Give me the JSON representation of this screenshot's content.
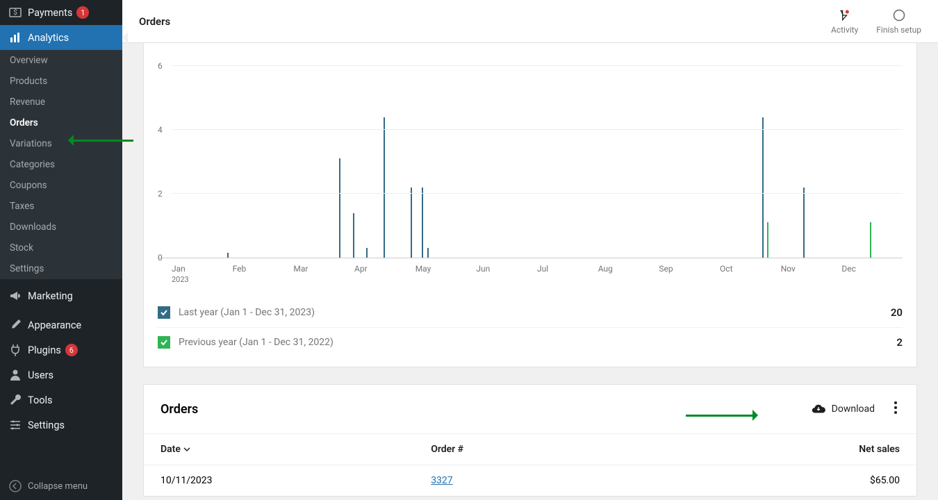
{
  "sidebar": {
    "payments": {
      "label": "Payments",
      "badge": "1"
    },
    "analytics": {
      "label": "Analytics"
    },
    "sub": [
      "Overview",
      "Products",
      "Revenue",
      "Orders",
      "Variations",
      "Categories",
      "Coupons",
      "Taxes",
      "Downloads",
      "Stock",
      "Settings"
    ],
    "sub_active_index": 3,
    "marketing": {
      "label": "Marketing"
    },
    "appearance": {
      "label": "Appearance"
    },
    "plugins": {
      "label": "Plugins",
      "badge": "6"
    },
    "users": {
      "label": "Users"
    },
    "tools": {
      "label": "Tools"
    },
    "settings": {
      "label": "Settings"
    },
    "collapse": "Collapse menu"
  },
  "header": {
    "title": "Orders",
    "activity": "Activity",
    "finish": "Finish setup"
  },
  "chart": {
    "ymax": 6,
    "ytick": 2,
    "ylim": [
      0,
      6.5
    ],
    "months": [
      "Jan",
      "Feb",
      "Mar",
      "Apr",
      "May",
      "Jun",
      "Jul",
      "Aug",
      "Sep",
      "Oct",
      "Nov",
      "Dec"
    ],
    "year_label": "2023",
    "series": [
      {
        "label": "Last year (Jan 1 - Dec 31, 2023)",
        "color": "#336b87",
        "total": "20",
        "points": [
          {
            "x": 0.076,
            "y": 0.15
          },
          {
            "x": 0.229,
            "y": 3.1
          },
          {
            "x": 0.248,
            "y": 1.4
          },
          {
            "x": 0.266,
            "y": 0.3
          },
          {
            "x": 0.29,
            "y": 4.4
          },
          {
            "x": 0.327,
            "y": 2.2
          },
          {
            "x": 0.342,
            "y": 2.2
          },
          {
            "x": 0.35,
            "y": 0.3
          },
          {
            "x": 0.808,
            "y": 4.4
          },
          {
            "x": 0.864,
            "y": 2.2
          }
        ]
      },
      {
        "label": "Previous year (Jan 1 - Dec 31, 2022)",
        "color": "#2fb456",
        "total": "2",
        "points": [
          {
            "x": 0.815,
            "y": 1.1
          },
          {
            "x": 0.955,
            "y": 1.1
          }
        ]
      }
    ]
  },
  "table": {
    "title": "Orders",
    "download": "Download",
    "columns": [
      "Date",
      "Order #",
      "Net sales"
    ],
    "rows": [
      {
        "date": "10/11/2023",
        "order": "3327",
        "net": "$65.00"
      }
    ]
  },
  "colors": {
    "accent": "#2271b1",
    "green": "#008a20"
  }
}
